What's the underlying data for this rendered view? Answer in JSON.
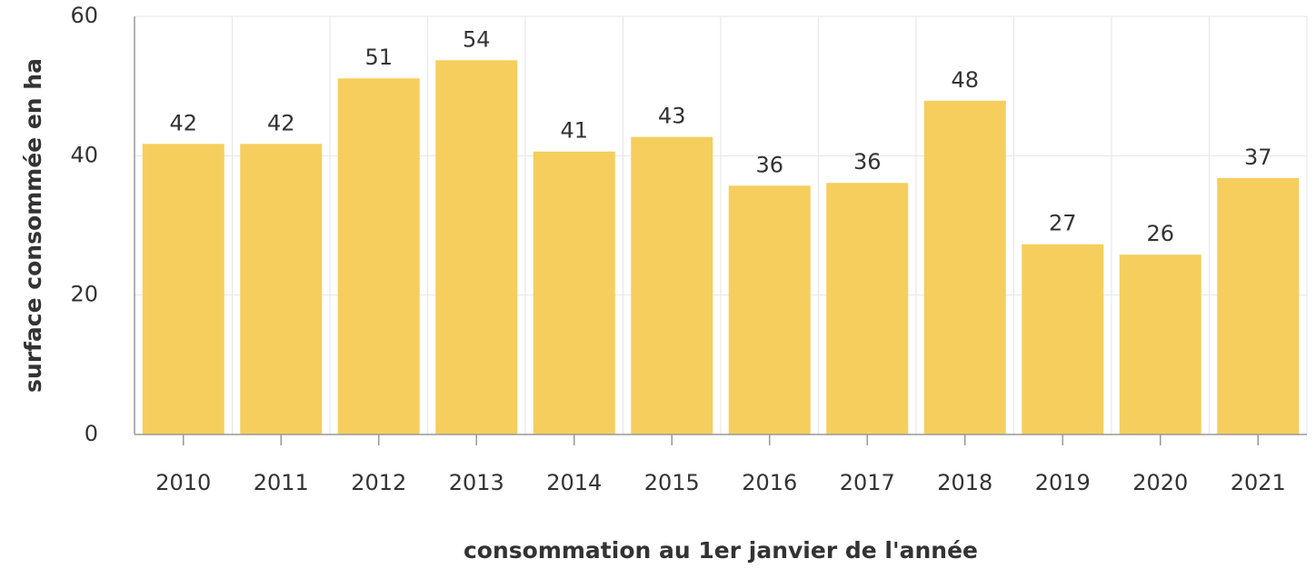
{
  "chart_data": {
    "type": "bar",
    "categories": [
      "2010",
      "2011",
      "2012",
      "2013",
      "2014",
      "2015",
      "2016",
      "2017",
      "2018",
      "2019",
      "2020",
      "2021"
    ],
    "values": [
      41.7,
      41.7,
      51.1,
      53.7,
      40.6,
      42.7,
      35.7,
      36.1,
      47.9,
      27.3,
      25.8,
      36.8
    ],
    "value_labels": [
      "42",
      "42",
      "51",
      "54",
      "41",
      "43",
      "36",
      "36",
      "48",
      "27",
      "26",
      "37"
    ],
    "color": "#f5ce5e",
    "ylim": [
      0,
      60
    ],
    "yticks": [
      0,
      20,
      40,
      60
    ],
    "grid": true,
    "xlabel": "consommation au 1er janvier de l'année",
    "ylabel": "surface consommée en ha"
  }
}
